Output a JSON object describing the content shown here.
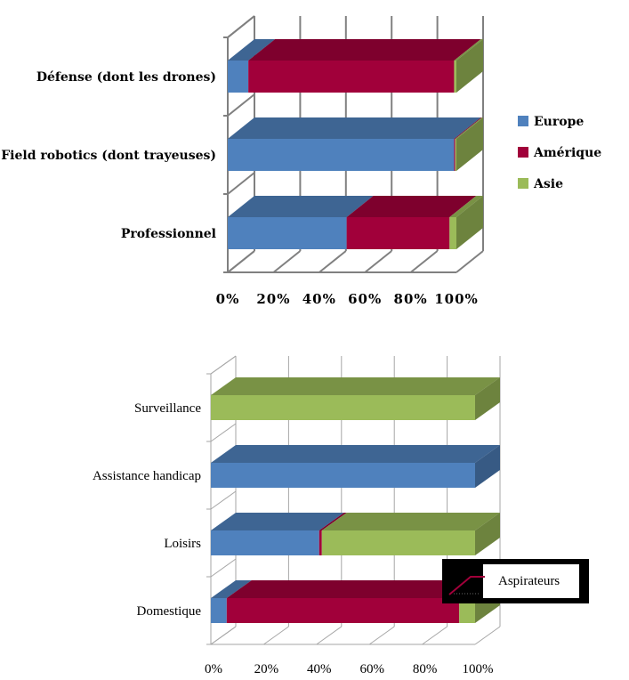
{
  "colors": {
    "europe": "#4F81BD",
    "amerique": "#A1003A",
    "asie": "#9BBB59"
  },
  "chart_data": [
    {
      "type": "bar",
      "orientation": "horizontal",
      "stacked": "percent",
      "title": "",
      "categories": [
        "Défense (dont les drones)",
        "Field robotics (dont trayeuses)",
        "Professionnel"
      ],
      "series": [
        {
          "name": "Europe",
          "values": [
            9,
            99,
            52
          ]
        },
        {
          "name": "Amérique",
          "values": [
            90,
            0.5,
            45
          ]
        },
        {
          "name": "Asie",
          "values": [
            1,
            0.5,
            3
          ]
        }
      ],
      "x_ticks": [
        "0%",
        "20%",
        "40%",
        "60%",
        "80%",
        "100%"
      ],
      "xlim": [
        0,
        100
      ],
      "grid": true,
      "legend": "right"
    },
    {
      "type": "bar",
      "orientation": "horizontal",
      "stacked": "percent",
      "title": "",
      "categories": [
        "Surveillance",
        "Assistance handicap",
        "Loisirs",
        "Domestique"
      ],
      "series": [
        {
          "name": "Europe",
          "values": [
            0,
            100,
            41,
            6
          ]
        },
        {
          "name": "Amérique",
          "values": [
            0,
            0,
            1,
            88
          ]
        },
        {
          "name": "Asie",
          "values": [
            100,
            0,
            58,
            6
          ]
        }
      ],
      "x_ticks": [
        "0%",
        "20%",
        "40%",
        "60%",
        "80%",
        "100%"
      ],
      "xlim": [
        0,
        100
      ],
      "grid": true,
      "annotation": "Aspirateurs"
    }
  ]
}
